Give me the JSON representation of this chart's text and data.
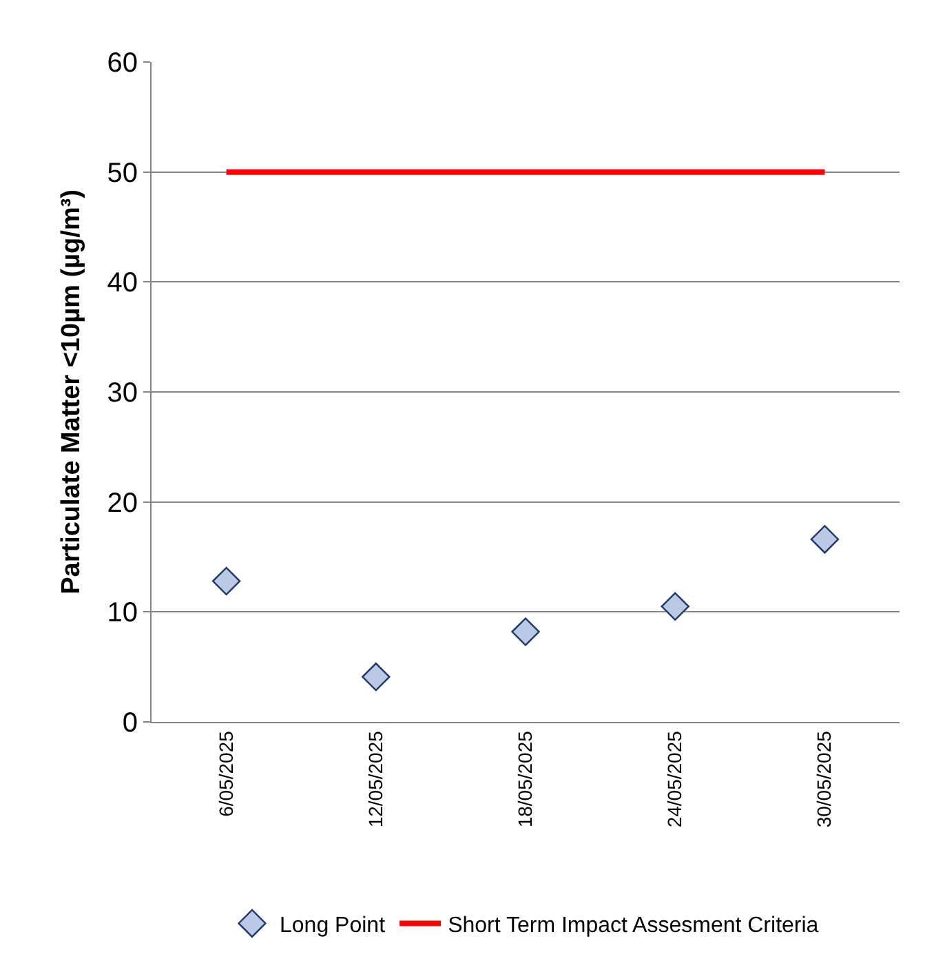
{
  "chart_data": {
    "type": "scatter",
    "ylabel": "Particulate Matter <10µm (µg/m³)",
    "categories": [
      "6/05/2025",
      "12/05/2025",
      "18/05/2025",
      "24/05/2025",
      "30/05/2025"
    ],
    "series": [
      {
        "name": "Long Point",
        "color": "#b9c9e6",
        "marker": "diamond",
        "values": [
          12.8,
          4.1,
          8.2,
          10.5,
          16.6
        ]
      },
      {
        "name": "Short Term Impact Assesment Criteria",
        "type": "line",
        "color": "#ff0000",
        "marker": "none",
        "line_style": "solid",
        "values": [
          50,
          50,
          50,
          50,
          50
        ]
      }
    ],
    "ylim": [
      0,
      60
    ],
    "yticks": [
      0,
      10,
      20,
      30,
      40,
      50,
      60
    ],
    "grid": "y",
    "legend": "bottom"
  }
}
